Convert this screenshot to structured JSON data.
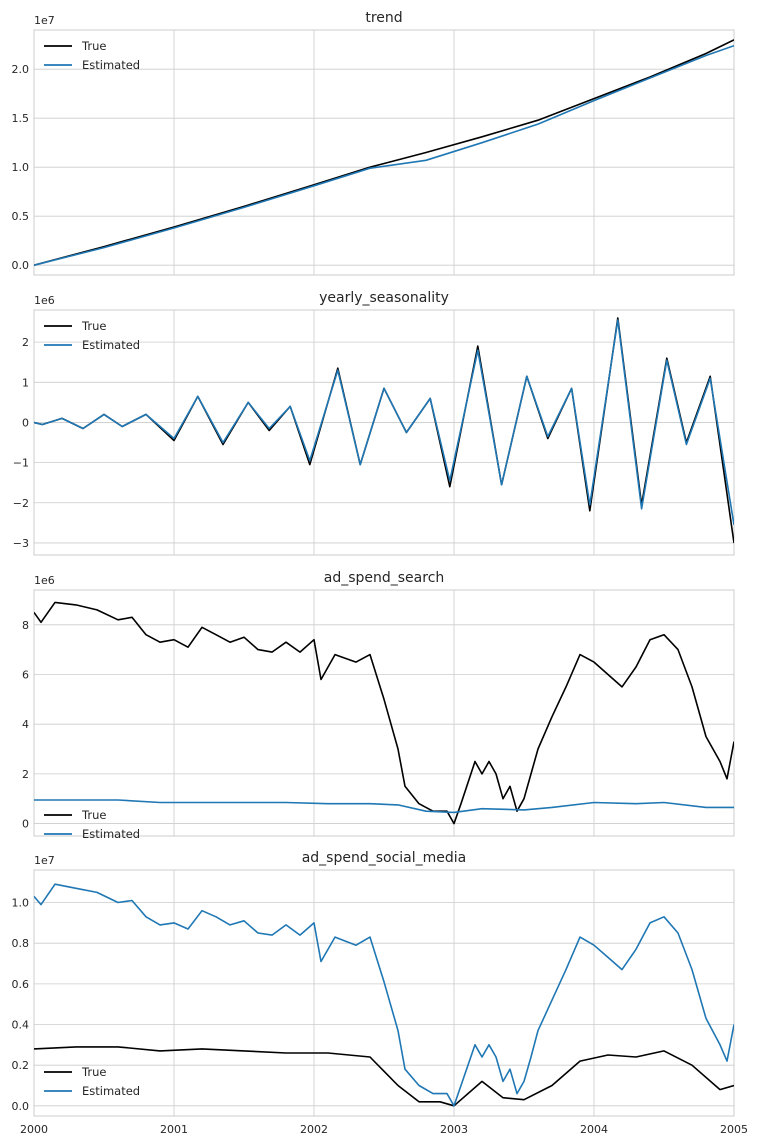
{
  "colors": {
    "true": "#000000",
    "estimated": "#1f77b4",
    "grid": "#cccccc",
    "text": "#262626"
  },
  "chart_data": [
    {
      "type": "line",
      "title": "trend",
      "xlabel": "",
      "ylabel": "",
      "offset_label": "1e7",
      "scale": 10000000,
      "xlim": [
        2000,
        2005
      ],
      "ylim": [
        -0.1,
        2.4
      ],
      "yticks": [
        0.0,
        0.5,
        1.0,
        1.5,
        2.0
      ],
      "ytick_labels": [
        "0.0",
        "0.5",
        "1.0",
        "1.5",
        "2.0"
      ],
      "xticks": [
        2000,
        2001,
        2002,
        2003,
        2004,
        2005
      ],
      "show_xtick_labels": false,
      "legend": "upper-left",
      "grid": true,
      "series": [
        {
          "name": "True",
          "color": "#000000",
          "x": [
            2000,
            2000.5,
            2001,
            2001.5,
            2002,
            2002.4,
            2002.8,
            2003.2,
            2003.6,
            2004,
            2004.4,
            2004.8,
            2005
          ],
          "y": [
            0.0,
            0.19,
            0.39,
            0.6,
            0.82,
            1.0,
            1.15,
            1.31,
            1.48,
            1.7,
            1.92,
            2.16,
            2.3
          ]
        },
        {
          "name": "Estimated",
          "color": "#1f77b4",
          "x": [
            2000,
            2000.5,
            2001,
            2001.5,
            2002,
            2002.4,
            2002.8,
            2003.2,
            2003.6,
            2004,
            2004.4,
            2004.8,
            2005
          ],
          "y": [
            0.0,
            0.18,
            0.38,
            0.59,
            0.81,
            0.99,
            1.07,
            1.25,
            1.44,
            1.68,
            1.91,
            2.14,
            2.24
          ]
        }
      ]
    },
    {
      "type": "line",
      "title": "yearly_seasonality",
      "xlabel": "",
      "ylabel": "",
      "offset_label": "1e6",
      "scale": 1000000,
      "xlim": [
        2000,
        2005
      ],
      "ylim": [
        -3.3,
        2.8
      ],
      "yticks": [
        -3,
        -2,
        -1,
        0,
        1,
        2
      ],
      "ytick_labels": [
        "−3",
        "−2",
        "−1",
        "0",
        "1",
        "2"
      ],
      "xticks": [
        2000,
        2001,
        2002,
        2003,
        2004,
        2005
      ],
      "show_xtick_labels": false,
      "legend": "upper-left",
      "grid": true,
      "series": [
        {
          "name": "True",
          "color": "#000000",
          "x": [
            2000,
            2000.06,
            2000.2,
            2000.35,
            2000.5,
            2000.63,
            2000.8,
            2001,
            2001.17,
            2001.35,
            2001.53,
            2001.68,
            2001.83,
            2001.97,
            2002.17,
            2002.33,
            2002.5,
            2002.66,
            2002.83,
            2002.97,
            2003.17,
            2003.34,
            2003.52,
            2003.67,
            2003.84,
            2003.97,
            2004.17,
            2004.34,
            2004.52,
            2004.66,
            2004.83,
            2005
          ],
          "y": [
            0,
            -0.05,
            0.1,
            -0.15,
            0.2,
            -0.1,
            0.2,
            -0.45,
            0.65,
            -0.55,
            0.5,
            -0.2,
            0.4,
            -1.05,
            1.35,
            -1.05,
            0.85,
            -0.25,
            0.6,
            -1.6,
            1.9,
            -1.55,
            1.15,
            -0.4,
            0.85,
            -2.2,
            2.6,
            -2.05,
            1.6,
            -0.5,
            1.15,
            -3.0
          ]
        },
        {
          "name": "Estimated",
          "color": "#1f77b4",
          "x": [
            2000,
            2000.06,
            2000.2,
            2000.35,
            2000.5,
            2000.63,
            2000.8,
            2001,
            2001.17,
            2001.35,
            2001.53,
            2001.68,
            2001.83,
            2001.97,
            2002.17,
            2002.33,
            2002.5,
            2002.66,
            2002.83,
            2002.97,
            2003.17,
            2003.34,
            2003.52,
            2003.67,
            2003.84,
            2003.97,
            2004.17,
            2004.34,
            2004.52,
            2004.66,
            2004.83,
            2005
          ],
          "y": [
            0,
            -0.05,
            0.1,
            -0.15,
            0.2,
            -0.1,
            0.2,
            -0.4,
            0.65,
            -0.5,
            0.5,
            -0.15,
            0.4,
            -0.95,
            1.3,
            -1.05,
            0.85,
            -0.25,
            0.6,
            -1.45,
            1.8,
            -1.55,
            1.15,
            -0.35,
            0.85,
            -2.05,
            2.55,
            -2.15,
            1.55,
            -0.55,
            1.1,
            -2.55
          ]
        }
      ]
    },
    {
      "type": "line",
      "title": "ad_spend_search",
      "xlabel": "",
      "ylabel": "",
      "offset_label": "1e6",
      "scale": 1000000,
      "xlim": [
        2000,
        2005
      ],
      "ylim": [
        -0.5,
        9.4
      ],
      "yticks": [
        0,
        2,
        4,
        6,
        8
      ],
      "ytick_labels": [
        "0",
        "2",
        "4",
        "6",
        "8"
      ],
      "xticks": [
        2000,
        2001,
        2002,
        2003,
        2004,
        2005
      ],
      "show_xtick_labels": false,
      "legend": "center-left",
      "grid": true,
      "series": [
        {
          "name": "True",
          "color": "#000000",
          "x": [
            2000,
            2000.05,
            2000.15,
            2000.3,
            2000.45,
            2000.6,
            2000.7,
            2000.8,
            2000.9,
            2001.0,
            2001.1,
            2001.2,
            2001.3,
            2001.4,
            2001.5,
            2001.6,
            2001.7,
            2001.8,
            2001.9,
            2002.0,
            2002.05,
            2002.15,
            2002.3,
            2002.4,
            2002.5,
            2002.6,
            2002.65,
            2002.75,
            2002.85,
            2002.95,
            2003.0,
            2003.05,
            2003.15,
            2003.2,
            2003.25,
            2003.3,
            2003.35,
            2003.4,
            2003.45,
            2003.5,
            2003.55,
            2003.6,
            2003.7,
            2003.8,
            2003.9,
            2004.0,
            2004.1,
            2004.2,
            2004.3,
            2004.4,
            2004.5,
            2004.6,
            2004.7,
            2004.8,
            2004.9,
            2004.95,
            2005
          ],
          "y": [
            8.5,
            8.1,
            8.9,
            8.8,
            8.6,
            8.2,
            8.3,
            7.6,
            7.3,
            7.4,
            7.1,
            7.9,
            7.6,
            7.3,
            7.5,
            7.0,
            6.9,
            7.3,
            6.9,
            7.4,
            5.8,
            6.8,
            6.5,
            6.8,
            5.0,
            3.0,
            1.5,
            0.8,
            0.5,
            0.5,
            0.0,
            0.8,
            2.5,
            2.0,
            2.5,
            2.0,
            1.0,
            1.5,
            0.5,
            1.0,
            2.0,
            3.0,
            4.3,
            5.5,
            6.8,
            6.5,
            6.0,
            5.5,
            6.3,
            7.4,
            7.6,
            7.0,
            5.5,
            3.5,
            2.5,
            1.8,
            3.3
          ]
        },
        {
          "name": "Estimated",
          "color": "#1f77b4",
          "x": [
            2000,
            2000.3,
            2000.6,
            2000.9,
            2001.2,
            2001.5,
            2001.8,
            2002.1,
            2002.4,
            2002.6,
            2002.8,
            2003.0,
            2003.2,
            2003.5,
            2003.7,
            2004.0,
            2004.3,
            2004.5,
            2004.8,
            2005
          ],
          "y": [
            0.95,
            0.95,
            0.95,
            0.85,
            0.85,
            0.85,
            0.85,
            0.8,
            0.8,
            0.75,
            0.5,
            0.45,
            0.6,
            0.55,
            0.65,
            0.85,
            0.8,
            0.85,
            0.65,
            0.65
          ]
        }
      ]
    },
    {
      "type": "line",
      "title": "ad_spend_social_media",
      "xlabel": "",
      "ylabel": "",
      "offset_label": "1e7",
      "scale": 10000000,
      "xlim": [
        2000,
        2005
      ],
      "ylim": [
        -0.05,
        1.16
      ],
      "yticks": [
        0.0,
        0.2,
        0.4,
        0.6,
        0.8,
        1.0
      ],
      "ytick_labels": [
        "0.0",
        "0.2",
        "0.4",
        "0.6",
        "0.8",
        "1.0"
      ],
      "xticks": [
        2000,
        2001,
        2002,
        2003,
        2004,
        2005
      ],
      "xtick_labels": [
        "2000",
        "2001",
        "2002",
        "2003",
        "2004",
        "2005"
      ],
      "show_xtick_labels": true,
      "legend": "lower-left",
      "grid": true,
      "series": [
        {
          "name": "True",
          "color": "#000000",
          "x": [
            2000,
            2000.3,
            2000.6,
            2000.9,
            2001.2,
            2001.5,
            2001.8,
            2002.1,
            2002.4,
            2002.6,
            2002.75,
            2002.9,
            2003.0,
            2003.2,
            2003.35,
            2003.5,
            2003.7,
            2003.9,
            2004.1,
            2004.3,
            2004.5,
            2004.7,
            2004.9,
            2005
          ],
          "y": [
            0.28,
            0.29,
            0.29,
            0.27,
            0.28,
            0.27,
            0.26,
            0.26,
            0.24,
            0.1,
            0.02,
            0.02,
            0.0,
            0.12,
            0.04,
            0.03,
            0.1,
            0.22,
            0.25,
            0.24,
            0.27,
            0.2,
            0.08,
            0.1
          ]
        },
        {
          "name": "Estimated",
          "color": "#1f77b4",
          "x": [
            2000,
            2000.05,
            2000.15,
            2000.3,
            2000.45,
            2000.6,
            2000.7,
            2000.8,
            2000.9,
            2001.0,
            2001.1,
            2001.2,
            2001.3,
            2001.4,
            2001.5,
            2001.6,
            2001.7,
            2001.8,
            2001.9,
            2002.0,
            2002.05,
            2002.15,
            2002.3,
            2002.4,
            2002.5,
            2002.6,
            2002.65,
            2002.75,
            2002.85,
            2002.95,
            2003.0,
            2003.05,
            2003.15,
            2003.2,
            2003.25,
            2003.3,
            2003.35,
            2003.4,
            2003.45,
            2003.5,
            2003.55,
            2003.6,
            2003.7,
            2003.8,
            2003.9,
            2004.0,
            2004.1,
            2004.2,
            2004.3,
            2004.4,
            2004.5,
            2004.6,
            2004.7,
            2004.8,
            2004.9,
            2004.95,
            2005
          ],
          "y": [
            1.03,
            0.99,
            1.09,
            1.07,
            1.05,
            1.0,
            1.01,
            0.93,
            0.89,
            0.9,
            0.87,
            0.96,
            0.93,
            0.89,
            0.91,
            0.85,
            0.84,
            0.89,
            0.84,
            0.9,
            0.71,
            0.83,
            0.79,
            0.83,
            0.61,
            0.37,
            0.18,
            0.1,
            0.06,
            0.06,
            0.0,
            0.1,
            0.3,
            0.24,
            0.3,
            0.24,
            0.12,
            0.18,
            0.06,
            0.12,
            0.24,
            0.37,
            0.52,
            0.67,
            0.83,
            0.79,
            0.73,
            0.67,
            0.77,
            0.9,
            0.93,
            0.85,
            0.67,
            0.43,
            0.3,
            0.22,
            0.4
          ]
        }
      ]
    }
  ]
}
